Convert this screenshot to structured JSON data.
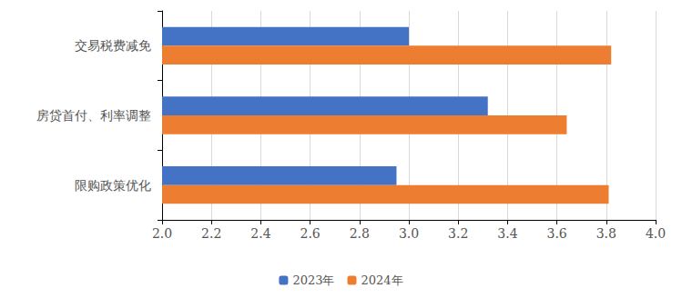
{
  "chart_data": {
    "type": "bar",
    "orientation": "horizontal",
    "categories": [
      "交易税费减免",
      "房贷首付、利率调整",
      "限购政策优化"
    ],
    "series": [
      {
        "name": "2023年",
        "color": "#4472c4",
        "values": [
          3.0,
          3.32,
          2.95
        ]
      },
      {
        "name": "2024年",
        "color": "#ed7d31",
        "values": [
          3.82,
          3.64,
          3.81
        ]
      }
    ],
    "xlim": [
      2.0,
      4.0
    ],
    "xticks": [
      {
        "value": 2.0,
        "label": "2.0"
      },
      {
        "value": 2.2,
        "label": "2.2"
      },
      {
        "value": 2.4,
        "label": "2.4"
      },
      {
        "value": 2.6,
        "label": "2.6"
      },
      {
        "value": 2.8,
        "label": "2.8"
      },
      {
        "value": 3.0,
        "label": "3.0"
      },
      {
        "value": 3.2,
        "label": "3.2"
      },
      {
        "value": 3.4,
        "label": "3.4"
      },
      {
        "value": 3.6,
        "label": "3.6"
      },
      {
        "value": 3.8,
        "label": "3.8"
      },
      {
        "value": 4.0,
        "label": "4.0"
      }
    ],
    "grid": true,
    "legend": "bottom"
  }
}
